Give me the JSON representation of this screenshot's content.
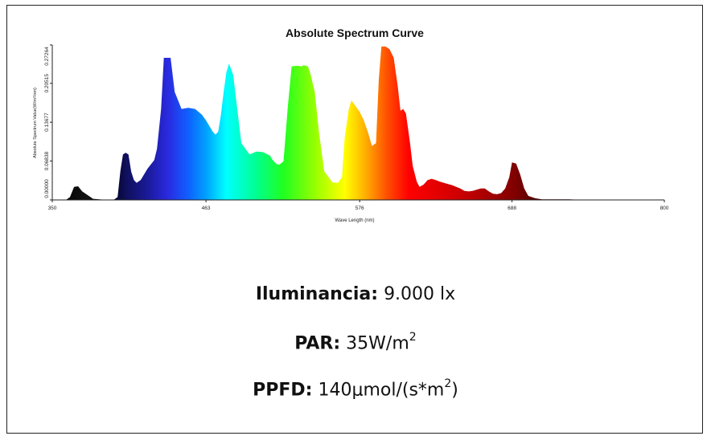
{
  "chart_data": {
    "type": "area",
    "title": "Absolute Spectrum Curve",
    "xlabel": "Wave Length (nm)",
    "ylabel": "Absolute Spectrum Value(W/m²/nm)",
    "xlim": [
      350,
      800
    ],
    "ylim": [
      0,
      0.27264
    ],
    "x_ticks": [
      "350",
      "463",
      "576",
      "688",
      "800"
    ],
    "y_ticks": [
      "0.00000",
      "0.06838",
      "0.13677",
      "0.20515",
      "0.27264"
    ],
    "grid": false,
    "x": [
      350,
      360,
      363,
      366,
      369,
      372,
      380,
      390,
      395,
      398,
      400,
      402,
      404,
      406,
      408,
      410,
      412,
      415,
      420,
      425,
      427,
      430,
      432,
      434,
      437,
      440,
      445,
      450,
      455,
      460,
      463,
      466,
      468,
      470,
      472,
      474,
      476,
      478,
      480,
      483,
      486,
      489,
      492,
      495,
      500,
      505,
      510,
      512,
      515,
      517,
      520,
      523,
      526,
      530,
      533,
      535,
      538,
      540,
      543,
      546,
      550,
      556,
      560,
      563,
      565,
      568,
      570,
      573,
      576,
      579,
      582,
      585,
      588,
      590,
      592,
      595,
      598,
      601,
      604,
      606,
      608,
      610,
      613,
      615,
      618,
      620,
      623,
      626,
      629,
      632,
      635,
      638,
      641,
      644,
      647,
      650,
      653,
      656,
      659,
      662,
      665,
      668,
      671,
      674,
      677,
      680,
      683,
      686,
      688,
      691,
      694,
      697,
      700,
      705,
      710,
      720,
      730,
      740,
      750,
      800
    ],
    "y": [
      0,
      0,
      0.005,
      0.023,
      0.024,
      0.015,
      0.002,
      0,
      0,
      0.005,
      0.05,
      0.08,
      0.083,
      0.08,
      0.05,
      0.035,
      0.03,
      0.035,
      0.055,
      0.07,
      0.09,
      0.16,
      0.25,
      0.25,
      0.25,
      0.19,
      0.16,
      0.162,
      0.16,
      0.15,
      0.14,
      0.128,
      0.12,
      0.115,
      0.12,
      0.15,
      0.19,
      0.225,
      0.24,
      0.22,
      0.16,
      0.1,
      0.09,
      0.08,
      0.085,
      0.084,
      0.078,
      0.07,
      0.063,
      0.062,
      0.068,
      0.16,
      0.235,
      0.236,
      0.235,
      0.237,
      0.235,
      0.22,
      0.19,
      0.12,
      0.05,
      0.031,
      0.03,
      0.04,
      0.11,
      0.16,
      0.175,
      0.165,
      0.155,
      0.14,
      0.12,
      0.095,
      0.1,
      0.21,
      0.27,
      0.27,
      0.265,
      0.25,
      0.2,
      0.157,
      0.16,
      0.152,
      0.1,
      0.06,
      0.032,
      0.023,
      0.027,
      0.035,
      0.037,
      0.035,
      0.032,
      0.03,
      0.028,
      0.026,
      0.023,
      0.02,
      0.016,
      0.015,
      0.016,
      0.018,
      0.02,
      0.02,
      0.015,
      0.011,
      0.01,
      0.012,
      0.02,
      0.04,
      0.066,
      0.064,
      0.045,
      0.02,
      0.007,
      0.003,
      0.001,
      0.001,
      0.001,
      0,
      0,
      0
    ]
  },
  "info": {
    "iluminancia_label": "Iluminancia:",
    "iluminancia_value": "9.000 lx",
    "par_label": "PAR:",
    "par_value": "35W/m",
    "par_exp": "2",
    "ppfd_label": "PPFD:",
    "ppfd_value": "140μmol/(s*m",
    "ppfd_exp": "2",
    "ppfd_close": ")"
  }
}
